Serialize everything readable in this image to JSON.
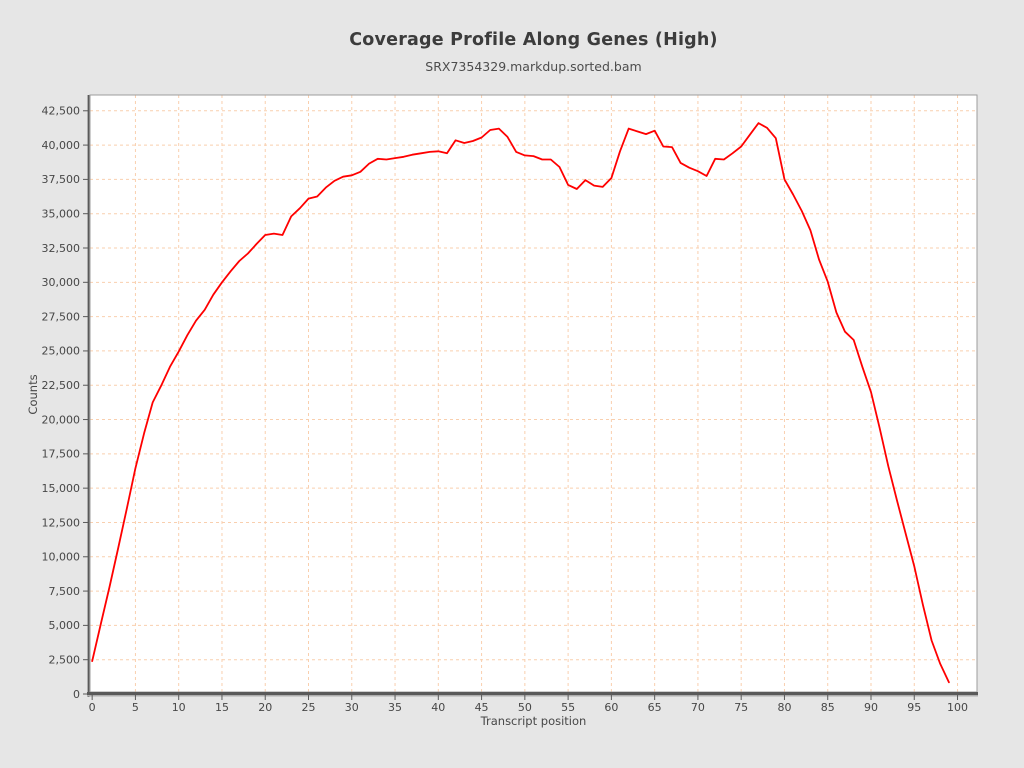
{
  "page": {
    "background_color": "#e6e6e6"
  },
  "chart_data": {
    "type": "line",
    "title": "Coverage Profile Along Genes (High)",
    "subtitle": "SRX7354329.markdup.sorted.bam",
    "xlabel": "Transcript position",
    "ylabel": "Counts",
    "xlim": [
      -0.25,
      102.25
    ],
    "ylim": [
      0,
      43650
    ],
    "grid": true,
    "legend": "none",
    "x_ticks": [
      0,
      5,
      10,
      15,
      20,
      25,
      30,
      35,
      40,
      45,
      50,
      55,
      60,
      65,
      70,
      75,
      80,
      85,
      90,
      95,
      100
    ],
    "y_ticks": [
      0,
      2500,
      5000,
      7500,
      10000,
      12500,
      15000,
      17500,
      20000,
      22500,
      25000,
      27500,
      30000,
      32500,
      35000,
      37500,
      40000,
      42500
    ],
    "y_tick_labels": [
      "0",
      "2,500",
      "5,000",
      "7,500",
      "10,000",
      "12,500",
      "15,000",
      "17,500",
      "20,000",
      "22,500",
      "25,000",
      "27,500",
      "30,000",
      "32,500",
      "35,000",
      "37,500",
      "40,000",
      "42,500"
    ],
    "colors": {
      "line": "#ff0000",
      "grid": "#f9cfae",
      "plot_background": "#ffffff",
      "plot_border": "#9c9c9c",
      "axis": "#5a5a5a",
      "axis_shadow": "#aeaeae",
      "tick_text": "#474747"
    },
    "series": [
      {
        "name": "coverage",
        "x_start": 0,
        "x_step": 1,
        "values": [
          2400,
          5100,
          7800,
          10600,
          13500,
          16450,
          19000,
          21250,
          22500,
          23850,
          24950,
          26150,
          27200,
          28000,
          29100,
          30000,
          30800,
          31550,
          32100,
          32800,
          33450,
          33550,
          33450,
          34800,
          35400,
          36100,
          36250,
          36900,
          37400,
          37700,
          37800,
          38050,
          38650,
          39000,
          38950,
          39050,
          39150,
          39300,
          39400,
          39500,
          39550,
          39400,
          40350,
          40150,
          40300,
          40550,
          41100,
          41200,
          40600,
          39500,
          39250,
          39200,
          38950,
          38950,
          38400,
          37100,
          36800,
          37450,
          37050,
          36950,
          37600,
          39550,
          41200,
          41000,
          40800,
          41050,
          39900,
          39850,
          38700,
          38350,
          38100,
          37750,
          39000,
          38950,
          39400,
          39900,
          40750,
          41600,
          41250,
          40500,
          37500,
          36400,
          35200,
          33800,
          31650,
          30050,
          27800,
          26400,
          25800,
          23850,
          22000,
          19400,
          16600,
          14100,
          11700,
          9300,
          6500,
          3900,
          2200,
          850
        ]
      }
    ]
  }
}
